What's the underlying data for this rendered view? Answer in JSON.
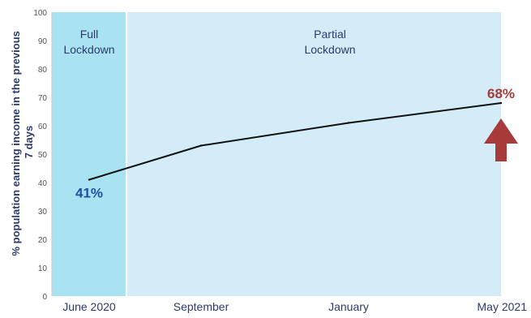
{
  "chart_data": {
    "type": "line",
    "x": [
      "June 2020",
      "September",
      "January",
      "May 2021"
    ],
    "series": [
      {
        "values": [
          41,
          53,
          61,
          68
        ]
      }
    ],
    "ylabel": "% population earning income in the previous 7 days",
    "ylim": [
      0,
      100
    ],
    "yticks": [
      0,
      10,
      20,
      30,
      40,
      50,
      60,
      70,
      80,
      90,
      100
    ],
    "grid": false,
    "annotations": {
      "start_label": "41%",
      "end_label": "68%",
      "up_arrow": true
    },
    "shaded_regions": [
      {
        "label_line1": "Full",
        "label_line2": "Lockdown",
        "color": "#a9e2f1"
      },
      {
        "label_line1": "Partial",
        "label_line2": "Lockdown",
        "color": "#d3ecf7"
      }
    ],
    "colors": {
      "line": "#111111",
      "start_label": "#1f4fa3",
      "end_label": "#a93a3a",
      "axis_text": "#2d3a6b"
    }
  }
}
